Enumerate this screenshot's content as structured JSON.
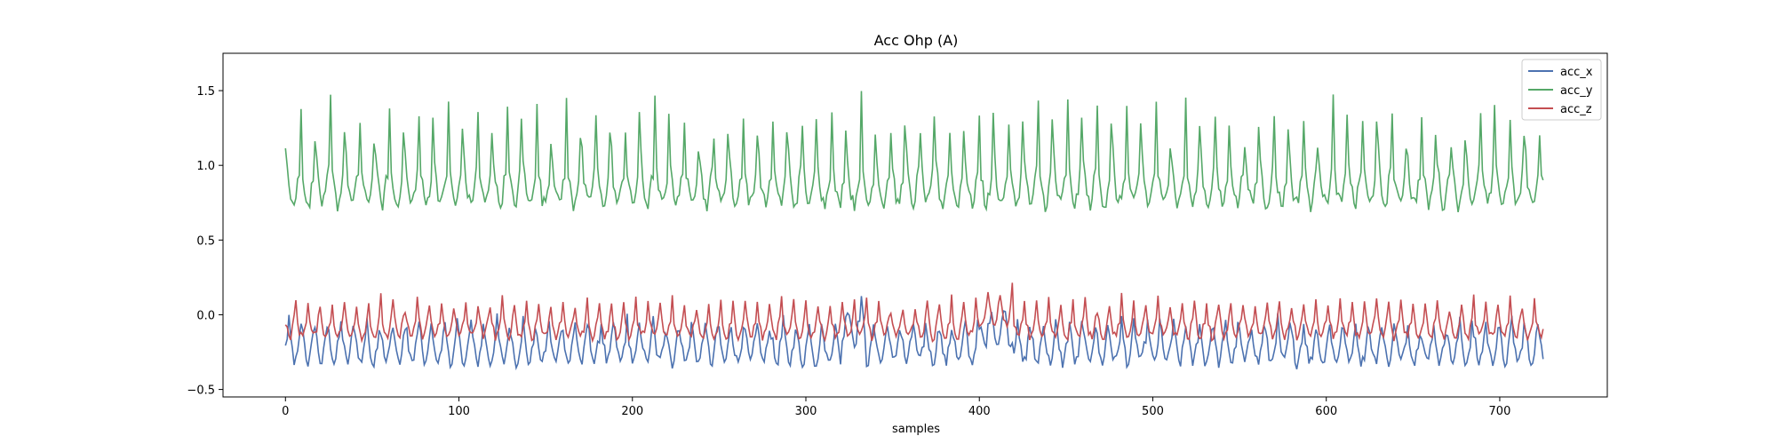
{
  "chart_data": {
    "type": "line",
    "title": "Acc Ohp (A)",
    "xlabel": "samples",
    "ylabel": "",
    "xlim": [
      -36,
      762
    ],
    "ylim": [
      -0.55,
      1.75
    ],
    "xticks": [
      0,
      100,
      200,
      300,
      400,
      500,
      600,
      700
    ],
    "yticks": [
      -0.5,
      0.0,
      0.5,
      1.0,
      1.5
    ],
    "ytick_labels": [
      "−0.5",
      "0.0",
      "0.5",
      "1.0",
      "1.5"
    ],
    "grid": false,
    "legend_position": "top-right",
    "n_samples": 726,
    "series": [
      {
        "name": "acc_x",
        "color": "#4c72b0",
        "base": -0.22,
        "amp": 0.1,
        "period": 7.5,
        "spike": 0.08
      },
      {
        "name": "acc_y",
        "color": "#55a868",
        "base": 0.86,
        "amp": 0.12,
        "period": 8.5,
        "spike": 0.38
      },
      {
        "name": "acc_z",
        "color": "#c44e52",
        "base": -0.08,
        "amp": 0.07,
        "period": 7.0,
        "spike": 0.1
      }
    ]
  }
}
